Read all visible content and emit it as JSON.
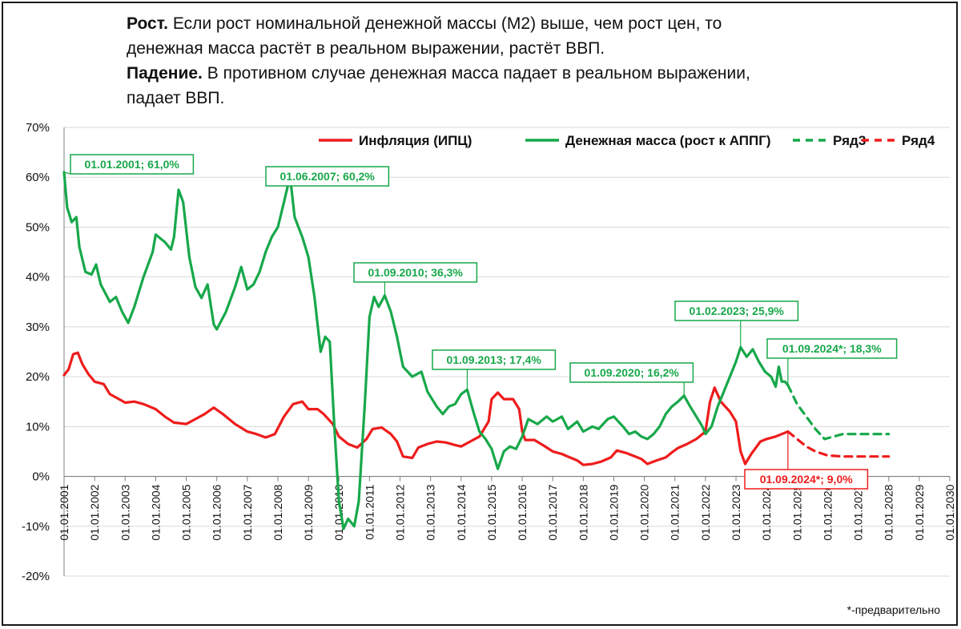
{
  "headline": {
    "line1_bold": "Рост.",
    "line1_rest": " Если рост номинальной денежной массы (М2) выше, чем рост цен,  то",
    "line2": "денежная масса растёт в реальном выражении, растёт ВВП.",
    "line3_bold": "Падение.",
    "line3_rest": " В противном случае денежная масса падает в реальном выражении,",
    "line4": "падает ВВП."
  },
  "footnote": "*-предварительно",
  "colors": {
    "inflation": "#ee1c1c",
    "money": "#17a84a",
    "grid": "#d9d9d9",
    "axis": "#7f7f7f"
  },
  "chart_data": {
    "type": "line",
    "y_ticks": [
      "-20%",
      "-10%",
      "0%",
      "10%",
      "20%",
      "30%",
      "40%",
      "50%",
      "60%",
      "70%"
    ],
    "x_ticks": [
      "01.01.2001",
      "01.01.2002",
      "01.01.2003",
      "01.01.2004",
      "01.01.2005",
      "01.01.2006",
      "01.01.2007",
      "01.01.2008",
      "01.01.2009",
      "01.01.2010",
      "01.01.2011",
      "01.01.2012",
      "01.01.2013",
      "01.01.2014",
      "01.01.2015",
      "01.01.2016",
      "01.01.2017",
      "01.01.2018",
      "01.01.2019",
      "01.01.2020",
      "01.01.2021",
      "01.01.2022",
      "01.01.2023",
      "01.01.2024",
      "01.01.2025",
      "01.01.2026",
      "01.01.2027",
      "01.01.2028",
      "01.01.2029",
      "01.01.2030"
    ],
    "ylim": [
      -20,
      70
    ],
    "xlim": [
      2001.0,
      2030.0
    ],
    "legend_position": "top",
    "series": [
      {
        "name": "Инфляция (ИПЦ)",
        "style": "solid",
        "color": "#ee1c1c",
        "points": [
          [
            2001.0,
            20.3
          ],
          [
            2001.15,
            21.5
          ],
          [
            2001.3,
            24.5
          ],
          [
            2001.45,
            24.8
          ],
          [
            2001.6,
            22.5
          ],
          [
            2001.8,
            20.5
          ],
          [
            2002.0,
            19.0
          ],
          [
            2002.3,
            18.5
          ],
          [
            2002.5,
            16.5
          ],
          [
            2002.8,
            15.5
          ],
          [
            2003.0,
            14.8
          ],
          [
            2003.3,
            15.0
          ],
          [
            2003.6,
            14.5
          ],
          [
            2004.0,
            13.5
          ],
          [
            2004.3,
            12.0
          ],
          [
            2004.6,
            10.8
          ],
          [
            2005.0,
            10.5
          ],
          [
            2005.3,
            11.5
          ],
          [
            2005.6,
            12.5
          ],
          [
            2005.9,
            13.8
          ],
          [
            2006.2,
            12.5
          ],
          [
            2006.6,
            10.5
          ],
          [
            2007.0,
            9.0
          ],
          [
            2007.3,
            8.5
          ],
          [
            2007.6,
            7.8
          ],
          [
            2007.9,
            8.5
          ],
          [
            2008.2,
            12.0
          ],
          [
            2008.5,
            14.5
          ],
          [
            2008.8,
            15.0
          ],
          [
            2009.0,
            13.5
          ],
          [
            2009.3,
            13.5
          ],
          [
            2009.5,
            12.5
          ],
          [
            2009.8,
            10.5
          ],
          [
            2010.0,
            8.0
          ],
          [
            2010.3,
            6.5
          ],
          [
            2010.6,
            5.8
          ],
          [
            2010.9,
            7.5
          ],
          [
            2011.1,
            9.5
          ],
          [
            2011.4,
            9.8
          ],
          [
            2011.7,
            8.5
          ],
          [
            2011.9,
            7.0
          ],
          [
            2012.1,
            4.0
          ],
          [
            2012.4,
            3.7
          ],
          [
            2012.6,
            5.8
          ],
          [
            2012.9,
            6.5
          ],
          [
            2013.2,
            7.0
          ],
          [
            2013.5,
            6.8
          ],
          [
            2013.8,
            6.3
          ],
          [
            2014.0,
            6.0
          ],
          [
            2014.3,
            7.0
          ],
          [
            2014.6,
            8.0
          ],
          [
            2014.9,
            11.0
          ],
          [
            2015.0,
            15.5
          ],
          [
            2015.2,
            16.8
          ],
          [
            2015.4,
            15.5
          ],
          [
            2015.7,
            15.5
          ],
          [
            2015.9,
            13.5
          ],
          [
            2016.0,
            9.0
          ],
          [
            2016.1,
            7.3
          ],
          [
            2016.4,
            7.3
          ],
          [
            2016.7,
            6.2
          ],
          [
            2017.0,
            5.0
          ],
          [
            2017.3,
            4.5
          ],
          [
            2017.6,
            3.7
          ],
          [
            2017.8,
            3.2
          ],
          [
            2018.0,
            2.3
          ],
          [
            2018.3,
            2.5
          ],
          [
            2018.6,
            3.0
          ],
          [
            2018.9,
            3.8
          ],
          [
            2019.1,
            5.2
          ],
          [
            2019.4,
            4.7
          ],
          [
            2019.7,
            4.0
          ],
          [
            2019.9,
            3.5
          ],
          [
            2020.1,
            2.5
          ],
          [
            2020.4,
            3.2
          ],
          [
            2020.7,
            3.8
          ],
          [
            2020.9,
            4.8
          ],
          [
            2021.1,
            5.7
          ],
          [
            2021.4,
            6.5
          ],
          [
            2021.7,
            7.5
          ],
          [
            2021.9,
            8.5
          ],
          [
            2022.0,
            9.0
          ],
          [
            2022.15,
            15.0
          ],
          [
            2022.3,
            17.8
          ],
          [
            2022.5,
            15.0
          ],
          [
            2022.8,
            13.0
          ],
          [
            2023.0,
            11.0
          ],
          [
            2023.15,
            5.0
          ],
          [
            2023.3,
            2.5
          ],
          [
            2023.5,
            4.5
          ],
          [
            2023.8,
            7.0
          ],
          [
            2024.0,
            7.5
          ],
          [
            2024.3,
            8.0
          ],
          [
            2024.5,
            8.5
          ],
          [
            2024.7,
            9.0
          ]
        ]
      },
      {
        "name": "Денежная масса (рост к АППГ)",
        "style": "solid",
        "color": "#17a84a",
        "points": [
          [
            2001.0,
            61.0
          ],
          [
            2001.1,
            54.0
          ],
          [
            2001.25,
            51.0
          ],
          [
            2001.4,
            52.0
          ],
          [
            2001.5,
            46.0
          ],
          [
            2001.7,
            41.0
          ],
          [
            2001.9,
            40.5
          ],
          [
            2002.05,
            42.5
          ],
          [
            2002.2,
            38.5
          ],
          [
            2002.5,
            35.0
          ],
          [
            2002.7,
            36.0
          ],
          [
            2002.9,
            33.0
          ],
          [
            2003.1,
            30.8
          ],
          [
            2003.3,
            34.0
          ],
          [
            2003.6,
            40.0
          ],
          [
            2003.9,
            45.0
          ],
          [
            2004.0,
            48.5
          ],
          [
            2004.3,
            47.0
          ],
          [
            2004.5,
            45.5
          ],
          [
            2004.6,
            48.0
          ],
          [
            2004.75,
            57.5
          ],
          [
            2004.9,
            55.0
          ],
          [
            2005.1,
            44.0
          ],
          [
            2005.3,
            38.0
          ],
          [
            2005.5,
            35.8
          ],
          [
            2005.7,
            38.5
          ],
          [
            2005.9,
            30.5
          ],
          [
            2006.0,
            29.5
          ],
          [
            2006.3,
            33.0
          ],
          [
            2006.6,
            38.0
          ],
          [
            2006.8,
            42.0
          ],
          [
            2007.0,
            37.5
          ],
          [
            2007.2,
            38.5
          ],
          [
            2007.4,
            41.0
          ],
          [
            2007.6,
            45.0
          ],
          [
            2007.8,
            48.0
          ],
          [
            2008.0,
            50.0
          ],
          [
            2008.2,
            55.0
          ],
          [
            2008.4,
            60.2
          ],
          [
            2008.55,
            52.0
          ],
          [
            2008.8,
            48.0
          ],
          [
            2009.0,
            44.0
          ],
          [
            2009.2,
            36.0
          ],
          [
            2009.4,
            25.0
          ],
          [
            2009.55,
            28.0
          ],
          [
            2009.7,
            27.0
          ],
          [
            2009.85,
            10.0
          ],
          [
            2010.0,
            -5.0
          ],
          [
            2010.15,
            -10.5
          ],
          [
            2010.3,
            -8.5
          ],
          [
            2010.5,
            -10.0
          ],
          [
            2010.65,
            -5.0
          ],
          [
            2010.85,
            15.0
          ],
          [
            2011.0,
            32.0
          ],
          [
            2011.15,
            36.0
          ],
          [
            2011.3,
            34.0
          ],
          [
            2011.5,
            36.3
          ],
          [
            2011.7,
            33.0
          ],
          [
            2011.9,
            28.0
          ],
          [
            2012.1,
            22.0
          ],
          [
            2012.4,
            20.0
          ],
          [
            2012.7,
            21.0
          ],
          [
            2012.9,
            17.0
          ],
          [
            2013.2,
            14.0
          ],
          [
            2013.4,
            12.5
          ],
          [
            2013.6,
            14.0
          ],
          [
            2013.8,
            14.5
          ],
          [
            2014.0,
            16.5
          ],
          [
            2014.2,
            17.4
          ],
          [
            2014.4,
            13.0
          ],
          [
            2014.6,
            9.0
          ],
          [
            2014.8,
            7.5
          ],
          [
            2015.0,
            5.5
          ],
          [
            2015.2,
            1.5
          ],
          [
            2015.4,
            5.0
          ],
          [
            2015.6,
            6.0
          ],
          [
            2015.8,
            5.5
          ],
          [
            2016.0,
            8.0
          ],
          [
            2016.2,
            11.5
          ],
          [
            2016.5,
            10.5
          ],
          [
            2016.8,
            12.0
          ],
          [
            2017.0,
            11.0
          ],
          [
            2017.3,
            12.0
          ],
          [
            2017.5,
            9.5
          ],
          [
            2017.8,
            11.0
          ],
          [
            2018.0,
            9.0
          ],
          [
            2018.3,
            10.0
          ],
          [
            2018.5,
            9.5
          ],
          [
            2018.8,
            11.5
          ],
          [
            2019.0,
            12.0
          ],
          [
            2019.3,
            10.0
          ],
          [
            2019.5,
            8.5
          ],
          [
            2019.7,
            9.0
          ],
          [
            2019.9,
            8.0
          ],
          [
            2020.1,
            7.5
          ],
          [
            2020.3,
            8.5
          ],
          [
            2020.5,
            10.0
          ],
          [
            2020.7,
            12.5
          ],
          [
            2020.9,
            14.0
          ],
          [
            2021.1,
            15.0
          ],
          [
            2021.3,
            16.2
          ],
          [
            2021.5,
            14.0
          ],
          [
            2021.7,
            12.0
          ],
          [
            2021.9,
            10.0
          ],
          [
            2022.0,
            8.5
          ],
          [
            2022.2,
            10.0
          ],
          [
            2022.4,
            14.0
          ],
          [
            2022.6,
            17.0
          ],
          [
            2022.8,
            20.0
          ],
          [
            2023.0,
            23.0
          ],
          [
            2023.15,
            25.9
          ],
          [
            2023.35,
            24.0
          ],
          [
            2023.55,
            25.5
          ],
          [
            2023.75,
            23.0
          ],
          [
            2023.95,
            21.0
          ],
          [
            2024.15,
            20.0
          ],
          [
            2024.3,
            18.0
          ],
          [
            2024.4,
            22.0
          ],
          [
            2024.5,
            19.0
          ],
          [
            2024.6,
            19.0
          ],
          [
            2024.7,
            18.3
          ]
        ]
      },
      {
        "name": "Ряд3",
        "style": "dashed",
        "color": "#17a84a",
        "points": [
          [
            2024.7,
            18.3
          ],
          [
            2025.0,
            14.5
          ],
          [
            2025.3,
            12.0
          ],
          [
            2025.6,
            9.5
          ],
          [
            2025.9,
            7.5
          ],
          [
            2026.2,
            8.0
          ],
          [
            2026.5,
            8.5
          ],
          [
            2027.0,
            8.5
          ],
          [
            2027.5,
            8.5
          ],
          [
            2028.0,
            8.5
          ]
        ]
      },
      {
        "name": "Ряд4",
        "style": "dashed",
        "color": "#ee1c1c",
        "points": [
          [
            2024.7,
            9.0
          ],
          [
            2025.0,
            7.5
          ],
          [
            2025.3,
            6.0
          ],
          [
            2025.6,
            5.0
          ],
          [
            2026.0,
            4.2
          ],
          [
            2026.5,
            4.0
          ],
          [
            2027.0,
            4.0
          ],
          [
            2027.5,
            4.0
          ],
          [
            2028.0,
            4.0
          ]
        ]
      }
    ],
    "annotations": [
      {
        "label": "01.01.2001; 61,0%",
        "x": 2001.0,
        "y": 61.0,
        "color": "#17a84a"
      },
      {
        "label": "01.06.2007; 60,2%",
        "x": 2008.4,
        "y": 60.2,
        "color": "#17a84a"
      },
      {
        "label": "01.09.2010; 36,3%",
        "x": 2011.5,
        "y": 36.3,
        "color": "#17a84a"
      },
      {
        "label": "01.09.2013; 17,4%",
        "x": 2014.2,
        "y": 17.4,
        "color": "#17a84a"
      },
      {
        "label": "01.09.2020; 16,2%",
        "x": 2021.3,
        "y": 16.2,
        "color": "#17a84a"
      },
      {
        "label": "01.02.2023; 25,9%",
        "x": 2023.15,
        "y": 25.9,
        "color": "#17a84a"
      },
      {
        "label": "01.09.2024*; 18,3%",
        "x": 2024.7,
        "y": 18.3,
        "color": "#17a84a"
      },
      {
        "label": "01.09.2024*; 9,0%",
        "x": 2024.7,
        "y": 9.0,
        "color": "#ee1c1c"
      }
    ]
  }
}
